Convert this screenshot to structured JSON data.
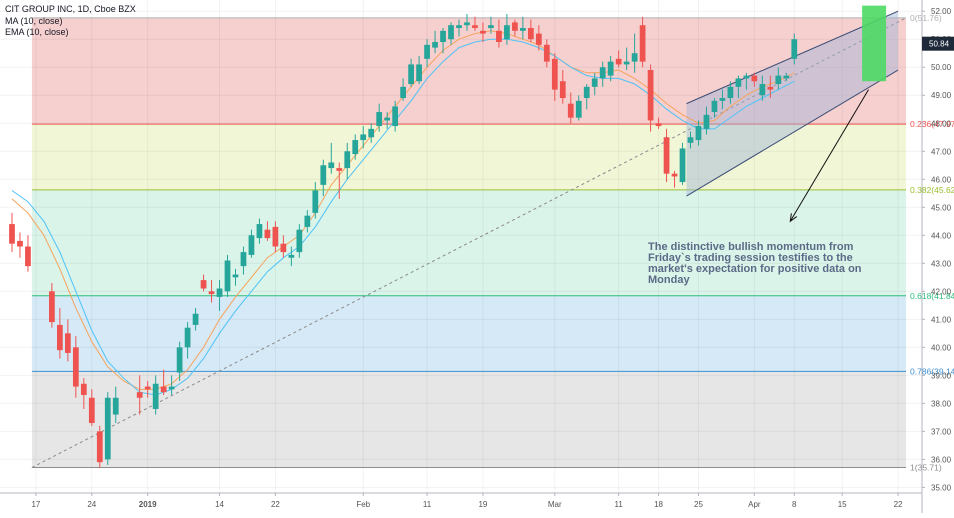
{
  "header": {
    "symbol_line": "CIT GROUP INC, 1D, Cboe BZX",
    "ma_line": "MA (10, close)",
    "ema_line": "EMA (10, close)"
  },
  "annotation": {
    "text": "The distinctive bullish momentum from Friday`s trading session testifies to the market's expectation for positive data on Monday"
  },
  "colors": {
    "bull_candle": "#26a69a",
    "bear_candle": "#ef5350",
    "ma_line": "#f7a35c",
    "ema_line": "#4fc3f7",
    "channel_fill": "#9fb3d6",
    "highlight_box": "#4cd964",
    "fib_zone_0_0236": "#f4c7c7",
    "fib_zone_0236_0382": "#eef5cf",
    "fib_zone_0382_0618": "#d3f2e6",
    "fib_zone_0618_0786": "#cfe5f4",
    "fib_zone_0786_1": "#e2e2e2"
  },
  "chart_data": {
    "type": "candlestick",
    "title": "CIT GROUP INC, 1D, Cboe BZX",
    "price_axis": {
      "ylim": [
        34.8,
        52.4
      ],
      "ticks": [
        "35.00",
        "36.00",
        "37.00",
        "38.00",
        "39.00",
        "40.00",
        "41.00",
        "42.00",
        "43.00",
        "44.00",
        "45.00",
        "46.00",
        "47.00",
        "48.00",
        "49.00",
        "50.00",
        "51.00",
        "52.00"
      ],
      "tick_values": [
        35,
        36,
        37,
        38,
        39,
        40,
        41,
        42,
        43,
        44,
        45,
        46,
        47,
        48,
        49,
        50,
        51,
        52
      ],
      "last_price_label": "50.84",
      "last_price": 50.84
    },
    "time_axis": {
      "labels": [
        "17",
        "24",
        "2019",
        "14",
        "22",
        "Feb",
        "11",
        "19",
        "Mar",
        "11",
        "18",
        "25",
        "Apr",
        "8",
        "15",
        "22"
      ],
      "label_index": [
        3,
        10,
        17,
        26,
        33,
        44,
        52,
        59,
        68,
        76,
        81,
        86,
        93,
        98,
        104,
        111
      ],
      "index_range": [
        -1.5,
        114
      ],
      "bold_labels": [
        "2019"
      ]
    },
    "fibonacci": {
      "start_index": 2.5,
      "end_index": 112,
      "levels": [
        {
          "ratio": "0",
          "price": 51.76,
          "label": "0(51.76)",
          "color": "#b0b0b0"
        },
        {
          "ratio": "0.236",
          "price": 47.97,
          "label": "0.236(47.97)",
          "color": "#ef5350"
        },
        {
          "ratio": "0.382",
          "price": 45.62,
          "label": "0.382(45.62)",
          "color": "#9bbf2f"
        },
        {
          "ratio": "0.618",
          "price": 41.84,
          "label": "0.618(41.84)",
          "color": "#2dbd7e"
        },
        {
          "ratio": "0.786",
          "price": 39.14,
          "label": "0.786(39.14)",
          "color": "#3d8fd1"
        },
        {
          "ratio": "1",
          "price": 35.71,
          "label": "1(35.71)",
          "color": "#8d8d8d"
        }
      ]
    },
    "trend_line": {
      "from": [
        2.5,
        35.71
      ],
      "to": [
        112,
        51.76
      ]
    },
    "channel": {
      "lower_start": [
        84.5,
        45.4
      ],
      "lower_end": [
        111,
        49.9
      ],
      "upper_start": [
        84.5,
        48.7
      ],
      "upper_end": [
        111,
        52.0
      ]
    },
    "highlight": {
      "index_range": [
        106.5,
        109.5
      ],
      "price_range": [
        49.5,
        52.2
      ]
    },
    "arrow": {
      "from": [
        97.5,
        44.5
      ],
      "to": [
        107.3,
        49.2
      ]
    },
    "candles": [
      {
        "i": 0,
        "o": 44.4,
        "h": 44.8,
        "l": 43.4,
        "c": 43.7
      },
      {
        "i": 1,
        "o": 43.8,
        "h": 44.1,
        "l": 43.2,
        "c": 43.6
      },
      {
        "i": 2,
        "o": 43.6,
        "h": 44.0,
        "l": 42.7,
        "c": 42.9
      },
      {
        "i": 5,
        "o": 42.0,
        "h": 42.3,
        "l": 40.7,
        "c": 40.9
      },
      {
        "i": 6,
        "o": 40.8,
        "h": 41.4,
        "l": 39.6,
        "c": 39.9
      },
      {
        "i": 7,
        "o": 40.5,
        "h": 41.0,
        "l": 39.5,
        "c": 39.8
      },
      {
        "i": 8,
        "o": 40.0,
        "h": 40.4,
        "l": 38.2,
        "c": 38.6
      },
      {
        "i": 9,
        "o": 38.7,
        "h": 38.9,
        "l": 37.8,
        "c": 38.3
      },
      {
        "i": 10,
        "o": 38.2,
        "h": 38.5,
        "l": 37.2,
        "c": 37.3
      },
      {
        "i": 11,
        "o": 37.0,
        "h": 37.2,
        "l": 35.7,
        "c": 35.9
      },
      {
        "i": 12,
        "o": 36.0,
        "h": 38.4,
        "l": 35.8,
        "c": 38.2
      },
      {
        "i": 13,
        "o": 37.6,
        "h": 38.6,
        "l": 37.3,
        "c": 38.2
      },
      {
        "i": 16,
        "o": 38.4,
        "h": 39.0,
        "l": 37.6,
        "c": 38.2
      },
      {
        "i": 17,
        "o": 38.6,
        "h": 38.8,
        "l": 38.2,
        "c": 38.5
      },
      {
        "i": 18,
        "o": 37.8,
        "h": 39.0,
        "l": 37.6,
        "c": 38.7
      },
      {
        "i": 19,
        "o": 38.6,
        "h": 39.2,
        "l": 38.3,
        "c": 38.4
      },
      {
        "i": 20,
        "o": 38.5,
        "h": 39.0,
        "l": 38.3,
        "c": 38.6
      },
      {
        "i": 21,
        "o": 39.1,
        "h": 40.2,
        "l": 38.8,
        "c": 40.0
      },
      {
        "i": 22,
        "o": 40.0,
        "h": 40.9,
        "l": 39.6,
        "c": 40.7
      },
      {
        "i": 23,
        "o": 40.8,
        "h": 41.4,
        "l": 40.6,
        "c": 41.2
      },
      {
        "i": 24,
        "o": 42.4,
        "h": 42.6,
        "l": 42.0,
        "c": 42.1
      },
      {
        "i": 25,
        "o": 42.0,
        "h": 42.4,
        "l": 41.6,
        "c": 41.9
      },
      {
        "i": 26,
        "o": 41.8,
        "h": 42.4,
        "l": 41.3,
        "c": 42.1
      },
      {
        "i": 27,
        "o": 42.0,
        "h": 43.3,
        "l": 41.8,
        "c": 43.1
      },
      {
        "i": 28,
        "o": 42.5,
        "h": 42.8,
        "l": 42.2,
        "c": 42.6
      },
      {
        "i": 29,
        "o": 42.9,
        "h": 43.6,
        "l": 42.6,
        "c": 43.4
      },
      {
        "i": 30,
        "o": 43.3,
        "h": 44.2,
        "l": 43.2,
        "c": 44.0
      },
      {
        "i": 31,
        "o": 43.9,
        "h": 44.6,
        "l": 43.7,
        "c": 44.4
      },
      {
        "i": 32,
        "o": 44.2,
        "h": 44.5,
        "l": 43.8,
        "c": 43.9
      },
      {
        "i": 33,
        "o": 44.3,
        "h": 44.5,
        "l": 43.4,
        "c": 43.6
      },
      {
        "i": 34,
        "o": 43.7,
        "h": 44.0,
        "l": 43.2,
        "c": 43.4
      },
      {
        "i": 35,
        "o": 43.2,
        "h": 43.6,
        "l": 42.9,
        "c": 43.3
      },
      {
        "i": 36,
        "o": 43.4,
        "h": 44.4,
        "l": 43.2,
        "c": 44.2
      },
      {
        "i": 37,
        "o": 44.3,
        "h": 44.9,
        "l": 44.1,
        "c": 44.7
      },
      {
        "i": 38,
        "o": 44.8,
        "h": 45.9,
        "l": 44.6,
        "c": 45.6
      },
      {
        "i": 39,
        "o": 45.8,
        "h": 46.7,
        "l": 45.4,
        "c": 46.5
      },
      {
        "i": 40,
        "o": 46.4,
        "h": 47.3,
        "l": 46.2,
        "c": 46.6
      },
      {
        "i": 41,
        "o": 46.4,
        "h": 46.6,
        "l": 45.3,
        "c": 46.3
      },
      {
        "i": 42,
        "o": 46.4,
        "h": 47.3,
        "l": 46.0,
        "c": 47.0
      },
      {
        "i": 43,
        "o": 46.9,
        "h": 47.6,
        "l": 46.7,
        "c": 47.4
      },
      {
        "i": 44,
        "o": 47.4,
        "h": 47.9,
        "l": 47.1,
        "c": 47.6
      },
      {
        "i": 45,
        "o": 47.5,
        "h": 48.0,
        "l": 47.3,
        "c": 47.8
      },
      {
        "i": 46,
        "o": 47.9,
        "h": 48.7,
        "l": 47.7,
        "c": 48.4
      },
      {
        "i": 47,
        "o": 48.1,
        "h": 48.4,
        "l": 47.8,
        "c": 48.2
      },
      {
        "i": 48,
        "o": 47.9,
        "h": 48.8,
        "l": 47.7,
        "c": 48.6
      },
      {
        "i": 49,
        "o": 48.9,
        "h": 49.6,
        "l": 48.8,
        "c": 49.3
      },
      {
        "i": 50,
        "o": 49.4,
        "h": 50.3,
        "l": 49.3,
        "c": 50.1
      },
      {
        "i": 51,
        "o": 49.5,
        "h": 50.4,
        "l": 49.4,
        "c": 50.1
      },
      {
        "i": 52,
        "o": 50.3,
        "h": 51.0,
        "l": 50.0,
        "c": 50.8
      },
      {
        "i": 53,
        "o": 50.7,
        "h": 51.3,
        "l": 50.5,
        "c": 50.9
      },
      {
        "i": 54,
        "o": 50.9,
        "h": 51.4,
        "l": 50.5,
        "c": 51.3
      },
      {
        "i": 55,
        "o": 51.0,
        "h": 51.6,
        "l": 50.8,
        "c": 51.5
      },
      {
        "i": 56,
        "o": 51.4,
        "h": 51.7,
        "l": 51.1,
        "c": 51.5
      },
      {
        "i": 57,
        "o": 51.5,
        "h": 51.9,
        "l": 51.3,
        "c": 51.6
      },
      {
        "i": 58,
        "o": 51.5,
        "h": 51.8,
        "l": 51.3,
        "c": 51.4
      },
      {
        "i": 59,
        "o": 51.3,
        "h": 51.6,
        "l": 50.9,
        "c": 51.2
      },
      {
        "i": 60,
        "o": 51.4,
        "h": 51.8,
        "l": 51.2,
        "c": 51.5
      },
      {
        "i": 61,
        "o": 51.3,
        "h": 51.7,
        "l": 50.7,
        "c": 50.9
      },
      {
        "i": 62,
        "o": 51.0,
        "h": 51.9,
        "l": 50.8,
        "c": 51.5
      },
      {
        "i": 63,
        "o": 51.6,
        "h": 51.7,
        "l": 51.1,
        "c": 51.3
      },
      {
        "i": 64,
        "o": 51.3,
        "h": 51.8,
        "l": 51.0,
        "c": 51.4
      },
      {
        "i": 65,
        "o": 51.4,
        "h": 51.7,
        "l": 50.9,
        "c": 51.0
      },
      {
        "i": 66,
        "o": 51.2,
        "h": 51.5,
        "l": 50.6,
        "c": 50.8
      },
      {
        "i": 67,
        "o": 50.8,
        "h": 51.0,
        "l": 50.0,
        "c": 50.2
      },
      {
        "i": 68,
        "o": 50.3,
        "h": 50.5,
        "l": 48.8,
        "c": 49.2
      },
      {
        "i": 69,
        "o": 49.5,
        "h": 49.9,
        "l": 48.7,
        "c": 48.9
      },
      {
        "i": 70,
        "o": 48.7,
        "h": 49.1,
        "l": 48.0,
        "c": 48.2
      },
      {
        "i": 71,
        "o": 48.2,
        "h": 49.0,
        "l": 48.1,
        "c": 48.8
      },
      {
        "i": 72,
        "o": 48.9,
        "h": 49.4,
        "l": 48.5,
        "c": 49.3
      },
      {
        "i": 73,
        "o": 49.3,
        "h": 49.8,
        "l": 49.0,
        "c": 49.6
      },
      {
        "i": 74,
        "o": 49.6,
        "h": 50.2,
        "l": 49.3,
        "c": 50.0
      },
      {
        "i": 75,
        "o": 49.7,
        "h": 50.4,
        "l": 49.5,
        "c": 50.2
      },
      {
        "i": 76,
        "o": 50.3,
        "h": 50.6,
        "l": 50.0,
        "c": 50.1
      },
      {
        "i": 77,
        "o": 50.1,
        "h": 50.7,
        "l": 49.9,
        "c": 50.2
      },
      {
        "i": 78,
        "o": 50.2,
        "h": 51.2,
        "l": 49.8,
        "c": 50.5
      },
      {
        "i": 79,
        "o": 51.5,
        "h": 51.8,
        "l": 50.0,
        "c": 50.2
      },
      {
        "i": 80,
        "o": 49.9,
        "h": 50.1,
        "l": 47.7,
        "c": 48.1
      },
      {
        "i": 81,
        "o": 48.0,
        "h": 48.2,
        "l": 47.8,
        "c": 47.9
      },
      {
        "i": 82,
        "o": 47.5,
        "h": 47.8,
        "l": 45.9,
        "c": 46.2
      },
      {
        "i": 83,
        "o": 46.2,
        "h": 46.3,
        "l": 45.7,
        "c": 46.1
      },
      {
        "i": 84,
        "o": 45.9,
        "h": 47.3,
        "l": 45.8,
        "c": 47.1
      },
      {
        "i": 85,
        "o": 47.3,
        "h": 47.7,
        "l": 47.1,
        "c": 47.5
      },
      {
        "i": 86,
        "o": 47.4,
        "h": 48.1,
        "l": 47.2,
        "c": 47.9
      },
      {
        "i": 87,
        "o": 47.8,
        "h": 48.6,
        "l": 47.6,
        "c": 48.3
      },
      {
        "i": 88,
        "o": 48.4,
        "h": 48.9,
        "l": 48.2,
        "c": 48.8
      },
      {
        "i": 89,
        "o": 48.8,
        "h": 49.2,
        "l": 48.5,
        "c": 48.9
      },
      {
        "i": 90,
        "o": 48.9,
        "h": 49.5,
        "l": 48.7,
        "c": 49.3
      },
      {
        "i": 91,
        "o": 49.3,
        "h": 49.7,
        "l": 48.9,
        "c": 49.6
      },
      {
        "i": 92,
        "o": 49.6,
        "h": 49.8,
        "l": 49.2,
        "c": 49.7
      },
      {
        "i": 93,
        "o": 49.7,
        "h": 49.8,
        "l": 49.3,
        "c": 49.5
      },
      {
        "i": 94,
        "o": 49.0,
        "h": 49.7,
        "l": 48.8,
        "c": 49.4
      },
      {
        "i": 95,
        "o": 49.3,
        "h": 49.7,
        "l": 48.9,
        "c": 49.2
      },
      {
        "i": 96,
        "o": 49.4,
        "h": 50.0,
        "l": 49.2,
        "c": 49.7
      },
      {
        "i": 97,
        "o": 49.6,
        "h": 49.8,
        "l": 49.5,
        "c": 49.7
      },
      {
        "i": 98,
        "o": 50.3,
        "h": 51.2,
        "l": 50.1,
        "c": 51.0
      }
    ],
    "ma_series": [
      [
        0,
        45.3
      ],
      [
        2,
        44.8
      ],
      [
        4,
        44.0
      ],
      [
        6,
        42.8
      ],
      [
        8,
        41.4
      ],
      [
        10,
        40.2
      ],
      [
        12,
        39.3
      ],
      [
        14,
        38.8
      ],
      [
        16,
        38.5
      ],
      [
        18,
        38.5
      ],
      [
        20,
        38.7
      ],
      [
        22,
        39.2
      ],
      [
        24,
        40.0
      ],
      [
        26,
        41.0
      ],
      [
        28,
        41.8
      ],
      [
        30,
        42.5
      ],
      [
        32,
        43.2
      ],
      [
        34,
        43.6
      ],
      [
        36,
        44.0
      ],
      [
        38,
        44.8
      ],
      [
        40,
        45.8
      ],
      [
        42,
        46.5
      ],
      [
        44,
        47.2
      ],
      [
        46,
        47.9
      ],
      [
        48,
        48.6
      ],
      [
        50,
        49.3
      ],
      [
        52,
        50.0
      ],
      [
        54,
        50.6
      ],
      [
        56,
        51.0
      ],
      [
        58,
        51.2
      ],
      [
        60,
        51.3
      ],
      [
        62,
        51.2
      ],
      [
        64,
        51.0
      ],
      [
        66,
        50.8
      ],
      [
        68,
        50.4
      ],
      [
        70,
        50.0
      ],
      [
        72,
        49.8
      ],
      [
        74,
        49.8
      ],
      [
        76,
        49.9
      ],
      [
        78,
        49.6
      ],
      [
        80,
        49.2
      ],
      [
        82,
        48.7
      ],
      [
        84,
        48.3
      ],
      [
        86,
        48.0
      ],
      [
        88,
        48.1
      ],
      [
        90,
        48.6
      ],
      [
        92,
        49.0
      ],
      [
        94,
        49.3
      ],
      [
        96,
        49.5
      ],
      [
        98,
        49.8
      ]
    ],
    "ema_series": [
      [
        0,
        45.6
      ],
      [
        2,
        45.2
      ],
      [
        4,
        44.5
      ],
      [
        6,
        43.4
      ],
      [
        8,
        42.0
      ],
      [
        10,
        40.6
      ],
      [
        12,
        39.5
      ],
      [
        14,
        38.9
      ],
      [
        16,
        38.4
      ],
      [
        18,
        38.3
      ],
      [
        20,
        38.5
      ],
      [
        22,
        38.9
      ],
      [
        24,
        39.6
      ],
      [
        26,
        40.5
      ],
      [
        28,
        41.3
      ],
      [
        30,
        42.0
      ],
      [
        32,
        42.7
      ],
      [
        34,
        43.2
      ],
      [
        36,
        43.6
      ],
      [
        38,
        44.3
      ],
      [
        40,
        45.2
      ],
      [
        42,
        46.0
      ],
      [
        44,
        46.7
      ],
      [
        46,
        47.4
      ],
      [
        48,
        48.1
      ],
      [
        50,
        48.8
      ],
      [
        52,
        49.6
      ],
      [
        54,
        50.2
      ],
      [
        56,
        50.7
      ],
      [
        58,
        50.9
      ],
      [
        60,
        51.0
      ],
      [
        62,
        51.0
      ],
      [
        64,
        50.9
      ],
      [
        66,
        50.7
      ],
      [
        68,
        50.4
      ],
      [
        70,
        50.0
      ],
      [
        72,
        49.7
      ],
      [
        74,
        49.6
      ],
      [
        76,
        49.6
      ],
      [
        78,
        49.4
      ],
      [
        80,
        49.0
      ],
      [
        82,
        48.5
      ],
      [
        84,
        48.1
      ],
      [
        86,
        47.8
      ],
      [
        88,
        47.8
      ],
      [
        90,
        48.2
      ],
      [
        92,
        48.6
      ],
      [
        94,
        48.9
      ],
      [
        96,
        49.2
      ],
      [
        98,
        49.5
      ]
    ]
  }
}
